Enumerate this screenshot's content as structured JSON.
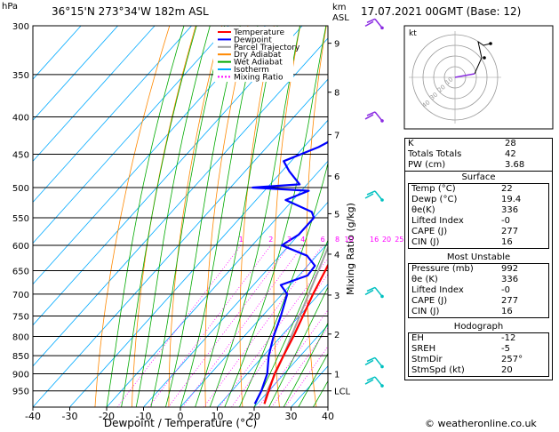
{
  "header": {
    "location": "36°15'N  273°34'W  182m  ASL",
    "datetime": "17.07.2021  00GMT  (Base: 12)",
    "hpa_unit": "hPa",
    "km_unit": "km",
    "asl_unit": "ASL"
  },
  "chart_data": {
    "type": "skew-t log-p",
    "xlabel": "Dewpoint / Temperature (°C)",
    "ylabel_right": "Mixing Ratio (g/kg)",
    "pressure_ticks": [
      300,
      350,
      400,
      450,
      500,
      550,
      600,
      650,
      700,
      750,
      800,
      850,
      900,
      950
    ],
    "temp_ticks": [
      -40,
      -30,
      -20,
      -10,
      0,
      10,
      20,
      30,
      40
    ],
    "xlim": [
      -40,
      40
    ],
    "ylim": [
      300,
      1000
    ],
    "km_ticks": [
      {
        "label": "9",
        "p": 317
      },
      {
        "label": "8",
        "p": 370
      },
      {
        "label": "7",
        "p": 423
      },
      {
        "label": "6",
        "p": 482
      },
      {
        "label": "5",
        "p": 543
      },
      {
        "label": "4",
        "p": 617
      },
      {
        "label": "3",
        "p": 702
      },
      {
        "label": "2",
        "p": 794
      },
      {
        "label": "1",
        "p": 900
      },
      {
        "label": "LCL",
        "p": 950
      }
    ],
    "mixing_ratio_labels": [
      "1",
      "2",
      "3",
      "4",
      "6",
      "8",
      "10",
      "16",
      "20",
      "25"
    ],
    "mixing_ratio_values": [
      1,
      2,
      3,
      4,
      6,
      8,
      10,
      16,
      20,
      25
    ],
    "legend": [
      {
        "name": "Temperature",
        "color": "#ff0000",
        "dash": ""
      },
      {
        "name": "Dewpoint",
        "color": "#0000ff",
        "dash": ""
      },
      {
        "name": "Parcel Trajectory",
        "color": "#a0a0a0",
        "dash": ""
      },
      {
        "name": "Dry Adiabat",
        "color": "#ff8800",
        "dash": ""
      },
      {
        "name": "Wet Adiabat",
        "color": "#00aa00",
        "dash": ""
      },
      {
        "name": "Isotherm",
        "color": "#00aaff",
        "dash": ""
      },
      {
        "name": "Mixing Ratio",
        "color": "#ff00ff",
        "dash": "2,2"
      }
    ],
    "temperature": [
      [
        990,
        22
      ],
      [
        950,
        20
      ],
      [
        900,
        17.4
      ],
      [
        850,
        15.4
      ],
      [
        800,
        13.4
      ],
      [
        750,
        11
      ],
      [
        700,
        8.4
      ],
      [
        650,
        6
      ],
      [
        600,
        3.2
      ],
      [
        550,
        -0.8
      ],
      [
        500,
        -5
      ],
      [
        450,
        -10
      ],
      [
        400,
        -16.4
      ],
      [
        350,
        -23.4
      ],
      [
        300,
        -32.4
      ]
    ],
    "dewpoint": [
      [
        990,
        19.4
      ],
      [
        950,
        18
      ],
      [
        900,
        15.4
      ],
      [
        850,
        11.4
      ],
      [
        800,
        8
      ],
      [
        750,
        5
      ],
      [
        700,
        1.4
      ],
      [
        680,
        -2.6
      ],
      [
        660,
        2.4
      ],
      [
        640,
        2
      ],
      [
        620,
        -2.6
      ],
      [
        600,
        -12
      ],
      [
        580,
        -10
      ],
      [
        550,
        -10
      ],
      [
        540,
        -12
      ],
      [
        520,
        -22
      ],
      [
        505,
        -18
      ],
      [
        500,
        -34
      ],
      [
        495,
        -22
      ],
      [
        475,
        -28
      ],
      [
        460,
        -32
      ],
      [
        440,
        -26
      ],
      [
        420,
        -22
      ],
      [
        400,
        -26
      ],
      [
        380,
        -24
      ],
      [
        360,
        -26
      ],
      [
        340,
        -30
      ],
      [
        320,
        -34
      ],
      [
        300,
        -38
      ]
    ],
    "parcel": [
      [
        990,
        22
      ],
      [
        950,
        19.6
      ],
      [
        900,
        17.6
      ],
      [
        850,
        15.4
      ],
      [
        800,
        12.8
      ],
      [
        700,
        7.2
      ],
      [
        600,
        0.8
      ],
      [
        500,
        -6.8
      ],
      [
        400,
        -16.6
      ],
      [
        300,
        -30.8
      ]
    ],
    "hodograph_rings": [
      "10",
      "20",
      "30",
      "40"
    ],
    "hodograph_label": "kt"
  },
  "wind_barbs": [
    {
      "p": 302,
      "color": "#8a2be2"
    },
    {
      "p": 405,
      "color": "#8a2be2"
    },
    {
      "p": 520,
      "color": "#00c0c0"
    },
    {
      "p": 705,
      "color": "#00c0c0"
    },
    {
      "p": 880,
      "color": "#00c0c0"
    },
    {
      "p": 935,
      "color": "#00c0c0"
    }
  ],
  "indices": [
    {
      "label": "K",
      "value": "28"
    },
    {
      "label": "Totals Totals",
      "value": "42"
    },
    {
      "label": "PW (cm)",
      "value": "3.68"
    }
  ],
  "surface": {
    "title": "Surface",
    "rows": [
      {
        "label": "Temp (°C)",
        "value": "22"
      },
      {
        "label": "Dewp (°C)",
        "value": "19.4"
      },
      {
        "label": "θe(K)",
        "value": "336"
      },
      {
        "label": "Lifted Index",
        "value": "-0"
      },
      {
        "label": "CAPE (J)",
        "value": "277"
      },
      {
        "label": "CIN (J)",
        "value": "16"
      }
    ]
  },
  "most_unstable": {
    "title": "Most Unstable",
    "rows": [
      {
        "label": "Pressure (mb)",
        "value": "992"
      },
      {
        "label": "θe (K)",
        "value": "336"
      },
      {
        "label": "Lifted Index",
        "value": "-0"
      },
      {
        "label": "CAPE (J)",
        "value": "277"
      },
      {
        "label": "CIN (J)",
        "value": "16"
      }
    ]
  },
  "hodograph_table": {
    "title": "Hodograph",
    "rows": [
      {
        "label": "EH",
        "value": "-12"
      },
      {
        "label": "SREH",
        "value": "-5"
      },
      {
        "label": "StmDir",
        "value": "257°"
      },
      {
        "label": "StmSpd (kt)",
        "value": "20"
      }
    ]
  },
  "copyright": "© weatheronline.co.uk"
}
